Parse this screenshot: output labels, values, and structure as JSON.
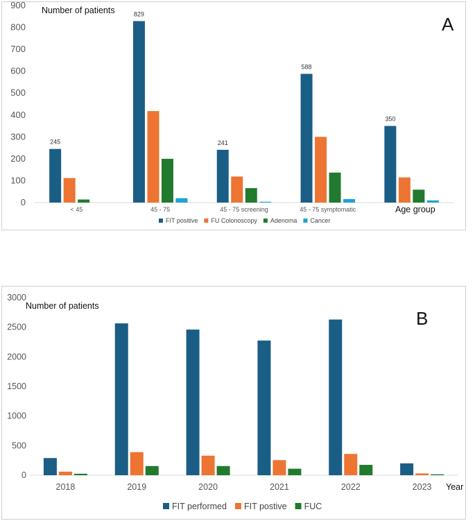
{
  "chart_data": [
    {
      "type": "bar",
      "panel_label": "A",
      "ylabel": "Number of patients",
      "xlabel": "Age group",
      "ylim": [
        0,
        900
      ],
      "yticks": [
        0,
        100,
        200,
        300,
        400,
        500,
        600,
        700,
        800,
        900
      ],
      "grid": false,
      "legend_position": "bottom",
      "categories": [
        "< 45",
        "45 - 75",
        "45 - 75  screening",
        "45 - 75 symptomatic",
        ""
      ],
      "series": [
        {
          "name": "FIT positive",
          "color": "#1a5e86",
          "values": [
            245,
            829,
            241,
            588,
            350
          ]
        },
        {
          "name": "FU Colonoscopy",
          "color": "#ed7432",
          "values": [
            112,
            418,
            119,
            300,
            115
          ]
        },
        {
          "name": "Adenoma",
          "color": "#217a2e",
          "values": [
            14,
            200,
            66,
            137,
            59
          ]
        },
        {
          "name": "Cancer",
          "color": "#20a2d4",
          "values": [
            0,
            20,
            3,
            16,
            10
          ]
        }
      ],
      "data_labels": {
        "series": "FIT positive",
        "values": [
          "245",
          "829",
          "241",
          "588",
          "350"
        ]
      }
    },
    {
      "type": "bar",
      "panel_label": "B",
      "ylabel": "Number of patients",
      "xlabel": "Year",
      "ylim": [
        0,
        3000
      ],
      "yticks": [
        0,
        500,
        1000,
        1500,
        2000,
        2500,
        3000
      ],
      "grid": false,
      "legend_position": "bottom",
      "categories": [
        "2018",
        "2019",
        "2020",
        "2021",
        "2022",
        "2023"
      ],
      "series": [
        {
          "name": "FIT performed",
          "color": "#1a5e86",
          "values": [
            290,
            2565,
            2460,
            2275,
            2630,
            200
          ]
        },
        {
          "name": "FIT postive",
          "color": "#ed7432",
          "values": [
            60,
            390,
            330,
            255,
            360,
            30
          ]
        },
        {
          "name": "FUC",
          "color": "#217a2e",
          "values": [
            25,
            155,
            155,
            110,
            175,
            15
          ]
        }
      ]
    }
  ]
}
